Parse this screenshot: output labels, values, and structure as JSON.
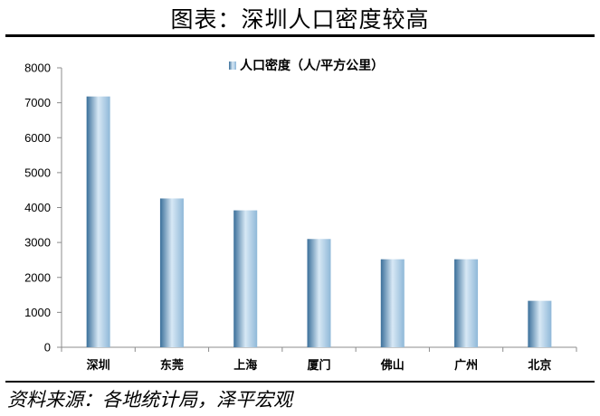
{
  "header": {
    "title": "图表：深圳人口密度较高"
  },
  "footer": {
    "source": "资料来源：各地统计局，泽平宏观"
  },
  "colors": {
    "bar_dark": "#3a6f9a",
    "bar_mid": "#8fb8d8",
    "bar_light": "#d7e8f5",
    "axis": "#8c8c8c"
  },
  "chart_data": {
    "type": "bar",
    "title": "",
    "xlabel": "",
    "ylabel": "",
    "categories": [
      "深圳",
      "东莞",
      "上海",
      "厦门",
      "佛山",
      "广州",
      "北京"
    ],
    "series": [
      {
        "name": "人口密度（人/平方公里）",
        "values": [
          7180,
          4260,
          3920,
          3100,
          2520,
          2520,
          1330
        ]
      }
    ],
    "ylim": [
      0,
      8000
    ],
    "yticks": [
      0,
      1000,
      2000,
      3000,
      4000,
      5000,
      6000,
      7000,
      8000
    ],
    "grid": false,
    "legend": "top-center"
  }
}
